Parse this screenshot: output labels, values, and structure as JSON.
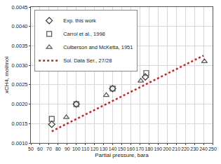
{
  "chart_data": {
    "type": "scatter",
    "x_label": "Partial pressure, bara",
    "y_label": "xCH4, mol/mol",
    "xlim": [
      50,
      250
    ],
    "xticks": [
      50,
      60,
      70,
      80,
      90,
      100,
      110,
      120,
      130,
      140,
      150,
      160,
      170,
      180,
      190,
      200,
      210,
      220,
      230,
      240,
      250
    ],
    "ylim": [
      0.001,
      0.0045
    ],
    "yticks": [
      {
        "value": 0.001,
        "label": "0.0010"
      },
      {
        "value": 0.0015,
        "label": "0.0015"
      },
      {
        "value": 0.002,
        "label": "0.0020"
      },
      {
        "value": 0.0025,
        "label": "0.0025"
      },
      {
        "value": 0.003,
        "label": "0.0030"
      },
      {
        "value": 0.0035,
        "label": "0.0035"
      },
      {
        "value": 0.004,
        "label": "0.0040"
      },
      {
        "value": 0.0045,
        "label": "0.0045"
      }
    ],
    "grid": true,
    "legend": "top-left",
    "series": [
      {
        "name": "Exp. this work",
        "type": "scatter",
        "marker": "diamond-open",
        "color": "#333333",
        "x": [
          73,
          100,
          140,
          176
        ],
        "values": [
          0.00148,
          0.002,
          0.0024,
          0.0027
        ]
      },
      {
        "name": "Carrol et al., 1998",
        "type": "scatter",
        "marker": "square-open",
        "color": "#555555",
        "x": [
          73,
          100,
          140,
          177
        ],
        "values": [
          0.00162,
          0.002,
          0.0024,
          0.0028
        ]
      },
      {
        "name": "Culberson and McKetta, 1951",
        "type": "scatter",
        "marker": "triangle-up-open",
        "color": "#555555",
        "x": [
          89,
          133,
          171,
          241
        ],
        "values": [
          0.00166,
          0.00223,
          0.0026,
          0.0031
        ]
      },
      {
        "name": "Sol. Data Ser., 27/28",
        "type": "line",
        "line_style": "dot",
        "color": "#c0281e",
        "x": [
          73,
          240
        ],
        "values": [
          0.0013,
          0.00325
        ]
      }
    ]
  }
}
